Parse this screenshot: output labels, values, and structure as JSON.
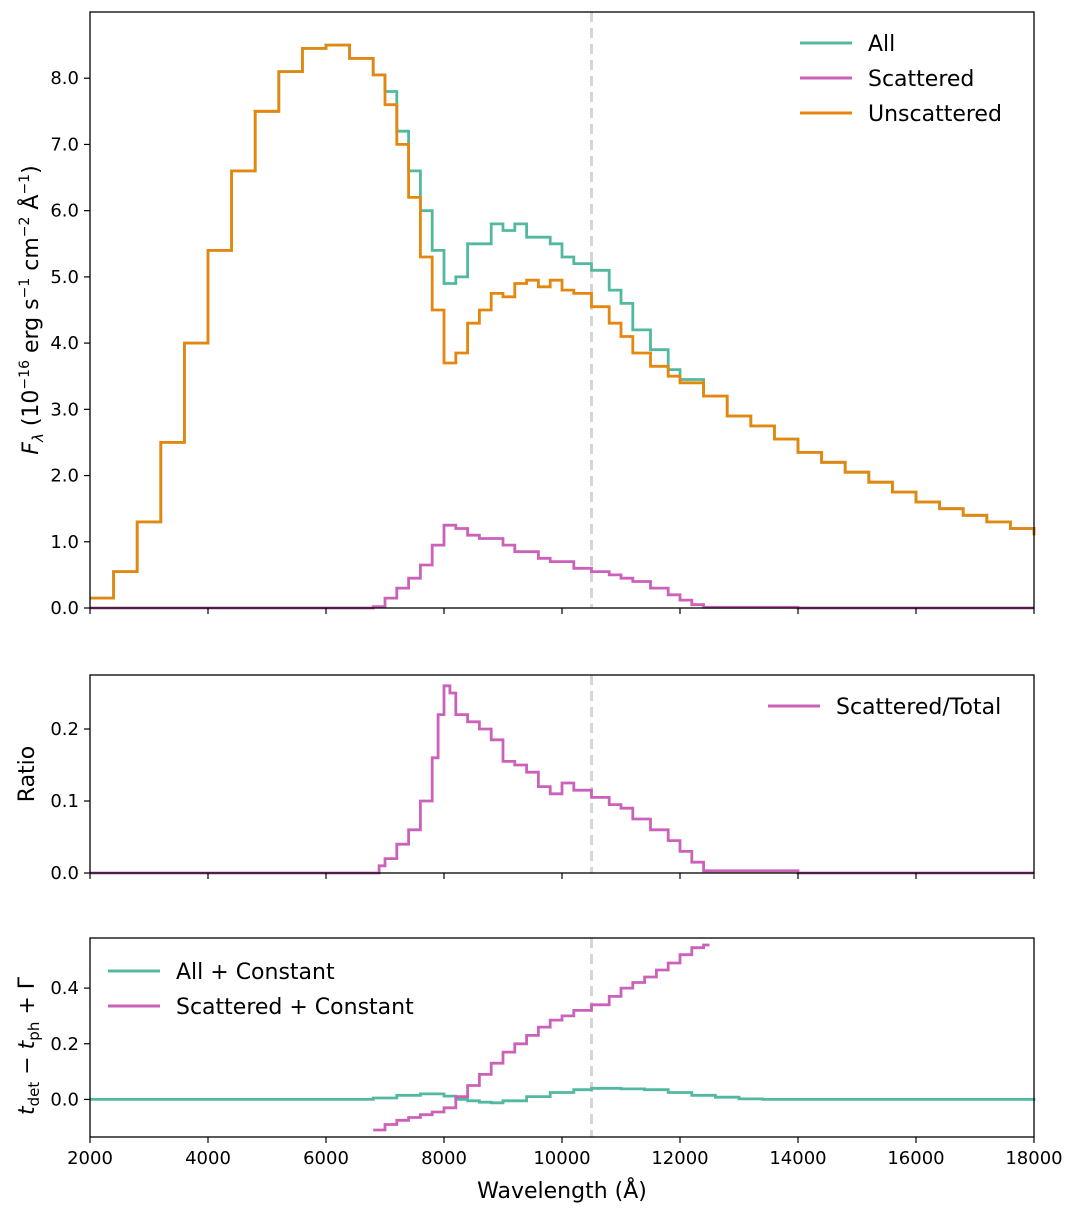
{
  "chart_data": [
    {
      "type": "line",
      "panel": "flux",
      "xlabel": "",
      "ylabel": "F_λ (10^−16 erg s^−1 cm^−2 Å^−1)",
      "ylabel_parts": {
        "symbol": "F",
        "sub": "λ",
        "a": " (10",
        "exp1": "−16",
        "b": " erg s",
        "exp2": "−1",
        "c": " cm",
        "exp3": "−2",
        "d": " Å",
        "exp4": "−1",
        "e": ")"
      },
      "xlim": [
        2000,
        18000
      ],
      "ylim": [
        0,
        9.0
      ],
      "yticks": [
        0.0,
        1.0,
        2.0,
        3.0,
        4.0,
        5.0,
        6.0,
        7.0,
        8.0
      ],
      "ytick_labels": [
        "0.0",
        "1.0",
        "2.0",
        "3.0",
        "4.0",
        "5.0",
        "6.0",
        "7.0",
        "8.0"
      ],
      "vline": 10500,
      "legend_position": "top-right",
      "series": [
        {
          "name": "All",
          "color": "#52b9a0",
          "x": [
            2000,
            2400,
            2800,
            3200,
            3600,
            4000,
            4400,
            4800,
            5200,
            5600,
            6000,
            6400,
            6800,
            7000,
            7200,
            7400,
            7600,
            7800,
            8000,
            8200,
            8400,
            8600,
            8800,
            9000,
            9200,
            9400,
            9600,
            9800,
            10000,
            10200,
            10500,
            10800,
            11000,
            11200,
            11500,
            11800,
            12000,
            12400,
            12800,
            13200,
            13600,
            14000,
            14400,
            14800,
            15200,
            15600,
            16000,
            16400,
            16800,
            17200,
            17600,
            18000
          ],
          "values": [
            0.15,
            0.55,
            1.3,
            2.5,
            4.0,
            5.4,
            6.6,
            7.5,
            8.1,
            8.45,
            8.5,
            8.3,
            8.05,
            7.8,
            7.2,
            6.6,
            6.0,
            5.4,
            4.9,
            5.0,
            5.5,
            5.5,
            5.8,
            5.7,
            5.8,
            5.6,
            5.6,
            5.5,
            5.3,
            5.2,
            5.1,
            4.8,
            4.6,
            4.2,
            3.9,
            3.6,
            3.45,
            3.2,
            2.9,
            2.75,
            2.55,
            2.35,
            2.2,
            2.05,
            1.9,
            1.75,
            1.6,
            1.5,
            1.4,
            1.3,
            1.2,
            1.1
          ]
        },
        {
          "name": "Scattered",
          "color": "#cc61b9",
          "x": [
            2000,
            4000,
            6000,
            6700,
            6800,
            7000,
            7200,
            7400,
            7600,
            7800,
            8000,
            8200,
            8400,
            8600,
            8800,
            9000,
            9200,
            9400,
            9600,
            9800,
            10000,
            10200,
            10500,
            10800,
            11000,
            11200,
            11500,
            11800,
            12000,
            12200,
            12400,
            14000,
            16000,
            18000
          ],
          "values": [
            0,
            0,
            0,
            0,
            0.02,
            0.15,
            0.3,
            0.45,
            0.65,
            0.95,
            1.25,
            1.2,
            1.1,
            1.05,
            1.05,
            0.95,
            0.85,
            0.85,
            0.75,
            0.7,
            0.7,
            0.6,
            0.55,
            0.5,
            0.45,
            0.4,
            0.3,
            0.2,
            0.12,
            0.05,
            0.01,
            0,
            0,
            0
          ]
        },
        {
          "name": "Unscattered",
          "color": "#e5860d",
          "x": [
            2000,
            2400,
            2800,
            3200,
            3600,
            4000,
            4400,
            4800,
            5200,
            5600,
            6000,
            6400,
            6800,
            7000,
            7200,
            7400,
            7600,
            7800,
            8000,
            8200,
            8400,
            8600,
            8800,
            9000,
            9200,
            9400,
            9600,
            9800,
            10000,
            10200,
            10500,
            10800,
            11000,
            11200,
            11500,
            11800,
            12000,
            12400,
            12800,
            13200,
            13600,
            14000,
            14400,
            14800,
            15200,
            15600,
            16000,
            16400,
            16800,
            17200,
            17600,
            18000
          ],
          "values": [
            0.15,
            0.55,
            1.3,
            2.5,
            4.0,
            5.4,
            6.6,
            7.5,
            8.1,
            8.45,
            8.5,
            8.3,
            8.05,
            7.6,
            7.0,
            6.2,
            5.3,
            4.5,
            3.7,
            3.85,
            4.3,
            4.5,
            4.75,
            4.7,
            4.9,
            4.95,
            4.85,
            4.95,
            4.8,
            4.75,
            4.55,
            4.3,
            4.1,
            3.85,
            3.65,
            3.5,
            3.4,
            3.2,
            2.9,
            2.75,
            2.55,
            2.35,
            2.2,
            2.05,
            1.9,
            1.75,
            1.6,
            1.5,
            1.4,
            1.3,
            1.2,
            1.1
          ]
        }
      ]
    },
    {
      "type": "line",
      "panel": "ratio",
      "xlabel": "",
      "ylabel": "Ratio",
      "xlim": [
        2000,
        18000
      ],
      "ylim": [
        0,
        0.275
      ],
      "yticks": [
        0.0,
        0.1,
        0.2
      ],
      "ytick_labels": [
        "0.0",
        "0.1",
        "0.2"
      ],
      "vline": 10500,
      "legend_position": "top-right",
      "series": [
        {
          "name": "Scattered/Total",
          "color": "#cc61b9",
          "x": [
            2000,
            4000,
            6000,
            6800,
            6900,
            7000,
            7200,
            7400,
            7600,
            7800,
            7900,
            8000,
            8100,
            8200,
            8400,
            8600,
            8800,
            9000,
            9200,
            9400,
            9600,
            9800,
            10000,
            10200,
            10500,
            10800,
            11000,
            11200,
            11500,
            11800,
            12000,
            12200,
            12400,
            14000,
            16000,
            18000
          ],
          "values": [
            0,
            0,
            0,
            0,
            0.01,
            0.02,
            0.04,
            0.06,
            0.1,
            0.16,
            0.22,
            0.26,
            0.25,
            0.22,
            0.21,
            0.2,
            0.185,
            0.155,
            0.15,
            0.14,
            0.12,
            0.11,
            0.125,
            0.115,
            0.105,
            0.095,
            0.09,
            0.075,
            0.06,
            0.045,
            0.03,
            0.015,
            0.003,
            0,
            0,
            0
          ]
        }
      ]
    },
    {
      "type": "line",
      "panel": "delay",
      "xlabel": "Wavelength (Å)",
      "ylabel": "t_det − t_ph + Γ",
      "ylabel_parts": {
        "t1": "t",
        "sub1": "det",
        "minus": " − ",
        "t2": "t",
        "sub2": "ph",
        "plus": " + Γ"
      },
      "xlim": [
        2000,
        18000
      ],
      "ylim": [
        -0.135,
        0.58
      ],
      "yticks": [
        0.0,
        0.2,
        0.4
      ],
      "ytick_labels": [
        "0.0",
        "0.2",
        "0.4"
      ],
      "xticks": [
        2000,
        4000,
        6000,
        8000,
        10000,
        12000,
        14000,
        16000,
        18000
      ],
      "xtick_labels": [
        "2000",
        "4000",
        "6000",
        "8000",
        "10000",
        "12000",
        "14000",
        "16000",
        "18000"
      ],
      "vline": 10500,
      "legend_position": "top-left",
      "series": [
        {
          "name": "All + Constant",
          "color": "#52b9a0",
          "x": [
            2000,
            3000,
            4000,
            5000,
            6000,
            6800,
            7200,
            7600,
            7800,
            8000,
            8200,
            8400,
            8600,
            8800,
            9000,
            9400,
            9800,
            10200,
            10500,
            10800,
            11000,
            11400,
            11800,
            12200,
            12600,
            13000,
            13400,
            14000,
            15000,
            16000,
            17000,
            17600,
            18000
          ],
          "values": [
            0.0,
            0.0,
            0.0,
            0.0,
            0.0,
            0.005,
            0.015,
            0.02,
            0.02,
            0.012,
            0.0,
            -0.005,
            -0.01,
            -0.012,
            -0.005,
            0.01,
            0.025,
            0.035,
            0.04,
            0.04,
            0.038,
            0.035,
            0.025,
            0.015,
            0.008,
            0.002,
            0.0,
            0.0,
            0.0,
            0.0,
            0.0,
            0.0,
            -0.005
          ]
        },
        {
          "name": "Scattered + Constant",
          "color": "#cc61b9",
          "x": [
            6800,
            7000,
            7200,
            7400,
            7600,
            7800,
            8000,
            8200,
            8400,
            8600,
            8800,
            9000,
            9200,
            9400,
            9600,
            9800,
            10000,
            10200,
            10500,
            10800,
            11000,
            11200,
            11400,
            11600,
            11800,
            12000,
            12200,
            12400
          ],
          "values": [
            -0.11,
            -0.09,
            -0.075,
            -0.065,
            -0.055,
            -0.045,
            -0.03,
            0.01,
            0.05,
            0.09,
            0.13,
            0.17,
            0.2,
            0.23,
            0.26,
            0.285,
            0.3,
            0.32,
            0.34,
            0.37,
            0.4,
            0.42,
            0.44,
            0.465,
            0.49,
            0.52,
            0.545,
            0.555
          ]
        }
      ]
    }
  ]
}
